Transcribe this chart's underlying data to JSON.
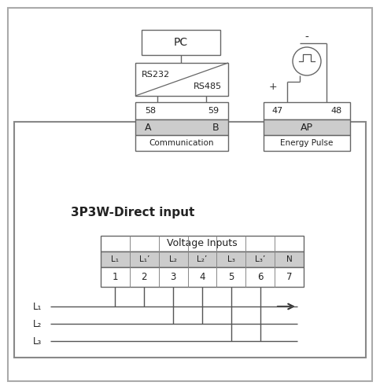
{
  "title": "3P3W-Direct input",
  "bg_color": "#ffffff",
  "box_fill": "#cccccc",
  "line_color": "#555555",
  "figsize": [
    4.83,
    4.95
  ],
  "dpi": 100,
  "col_labels": [
    "L₁",
    "L₁’",
    "L₂",
    "L₂’",
    "L₃",
    "L₃’",
    "N"
  ],
  "col_numbers": [
    "1",
    "2",
    "3",
    "4",
    "5",
    "6",
    "7"
  ],
  "L_labels": [
    "L₁",
    "L₂",
    "L₃"
  ]
}
